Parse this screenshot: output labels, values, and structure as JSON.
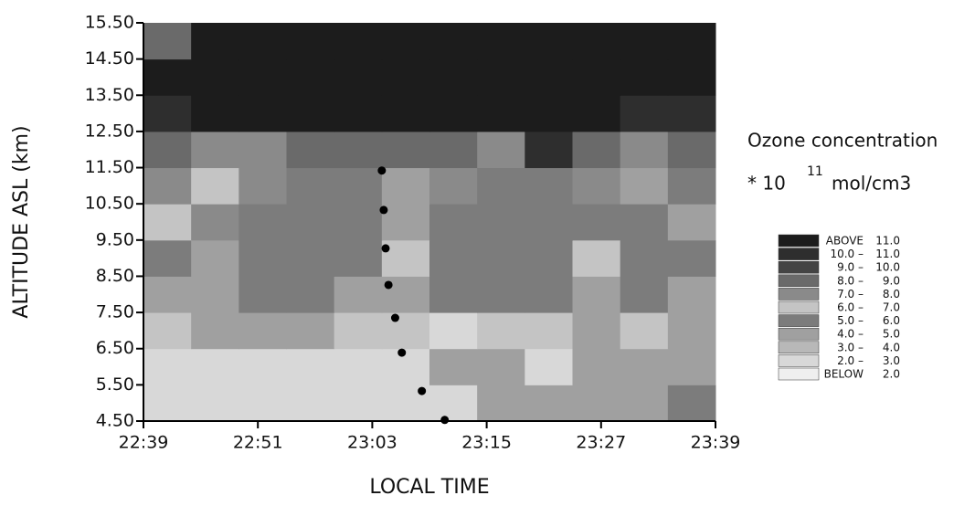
{
  "chart_data": {
    "type": "heatmap",
    "ylabel": "ALTITUDE ASL (km)",
    "xlabel": "LOCAL TIME",
    "title": "Ozone concentration",
    "subtitle_prefix": "* 10",
    "subtitle_exponent": "11",
    "subtitle_unit": "mol/cm3",
    "xlim": [
      1359,
      1419
    ],
    "ylim": [
      4.5,
      15.5
    ],
    "xticks": [
      {
        "value": 1359,
        "label": "22:39"
      },
      {
        "value": 1371,
        "label": "22:51"
      },
      {
        "value": 1383,
        "label": "23:03"
      },
      {
        "value": 1395,
        "label": "23:15"
      },
      {
        "value": 1407,
        "label": "23:27"
      },
      {
        "value": 1419,
        "label": "23:39"
      }
    ],
    "yticks": [
      {
        "value": 4.5,
        "label": "4.50"
      },
      {
        "value": 5.5,
        "label": "5.50"
      },
      {
        "value": 6.5,
        "label": "6.50"
      },
      {
        "value": 7.5,
        "label": "7.50"
      },
      {
        "value": 8.5,
        "label": "8.50"
      },
      {
        "value": 9.5,
        "label": "9.50"
      },
      {
        "value": 10.5,
        "label": "10.50"
      },
      {
        "value": 11.5,
        "label": "11.50"
      },
      {
        "value": 12.5,
        "label": "12.50"
      },
      {
        "value": 13.5,
        "label": "13.50"
      },
      {
        "value": 14.5,
        "label": "14.50"
      },
      {
        "value": 15.5,
        "label": "15.50"
      }
    ],
    "levels": [
      2,
      3,
      4,
      5,
      6,
      7,
      8,
      9,
      10,
      11
    ],
    "legend": [
      {
        "label": "ABOVE",
        "range": "11.0",
        "color": "#1c1c1c"
      },
      {
        "label": "10.0 –",
        "range": "11.0",
        "color": "#2e2e2e"
      },
      {
        "label": "9.0 –",
        "range": "10.0",
        "color": "#444444"
      },
      {
        "label": "8.0 –",
        "range": "9.0",
        "color": "#6a6a6a"
      },
      {
        "label": "7.0 –",
        "range": "8.0",
        "color": "#8a8a8a"
      },
      {
        "label": "6.0 –",
        "range": "7.0",
        "color": "#c4c4c4"
      },
      {
        "label": "5.0 –",
        "range": "6.0",
        "color": "#7c7c7c"
      },
      {
        "label": "4.0 –",
        "range": "5.0",
        "color": "#a0a0a0"
      },
      {
        "label": "3.0 –",
        "range": "4.0",
        "color": "#b8b8b8"
      },
      {
        "label": "2.0 –",
        "range": "3.0",
        "color": "#d8d8d8"
      },
      {
        "label": "BELOW",
        "range": "2.0",
        "color": "#efefef"
      }
    ],
    "z": [
      [
        2.5,
        2.5,
        2.5,
        2.5,
        2.5,
        2.5,
        2.5,
        4.5,
        4.5,
        4.5,
        4.5,
        5.5
      ],
      [
        2.5,
        2.5,
        2.5,
        2.5,
        2.5,
        2.5,
        4.5,
        4.5,
        2.5,
        4.5,
        4.5,
        4.5
      ],
      [
        6.5,
        4.5,
        4.5,
        4.5,
        6.5,
        6.5,
        2.5,
        6.5,
        6.5,
        4.5,
        6.5,
        4.5
      ],
      [
        4.5,
        4.5,
        5.5,
        5.5,
        4.5,
        4.5,
        5.5,
        5.5,
        5.5,
        4.5,
        5.5,
        4.5
      ],
      [
        5.5,
        4.5,
        5.5,
        5.5,
        5.5,
        6.5,
        5.5,
        5.5,
        5.5,
        6.5,
        5.5,
        5.5
      ],
      [
        6.5,
        7.5,
        5.5,
        5.5,
        5.5,
        4.5,
        5.5,
        5.5,
        5.5,
        5.5,
        5.5,
        4.5
      ],
      [
        7.5,
        6.5,
        7.5,
        5.5,
        5.5,
        4.5,
        7.5,
        5.5,
        5.5,
        7.5,
        4.5,
        5.5
      ],
      [
        8.5,
        7.5,
        7.5,
        8.5,
        8.5,
        8.5,
        8.5,
        7.5,
        10.5,
        8.5,
        7.5,
        8.5
      ],
      [
        10.5,
        11.5,
        11.5,
        11.5,
        11.5,
        11.5,
        11.5,
        11.5,
        11.5,
        11.5,
        10.5,
        10.5
      ],
      [
        11.5,
        11.5,
        11.5,
        11.5,
        11.5,
        11.5,
        11.5,
        11.5,
        11.5,
        11.5,
        11.5,
        11.5
      ],
      [
        8.5,
        11.5,
        11.5,
        11.5,
        11.5,
        11.5,
        11.5,
        11.5,
        11.5,
        11.5,
        11.5,
        11.5
      ]
    ],
    "points": {
      "color": "#000000",
      "x": [
        1384,
        1384.2,
        1384.4,
        1384.7,
        1385.4,
        1386.1,
        1388.2,
        1390.6
      ],
      "y": [
        11.42,
        10.33,
        9.27,
        8.26,
        7.35,
        6.39,
        5.33,
        4.53
      ]
    }
  }
}
